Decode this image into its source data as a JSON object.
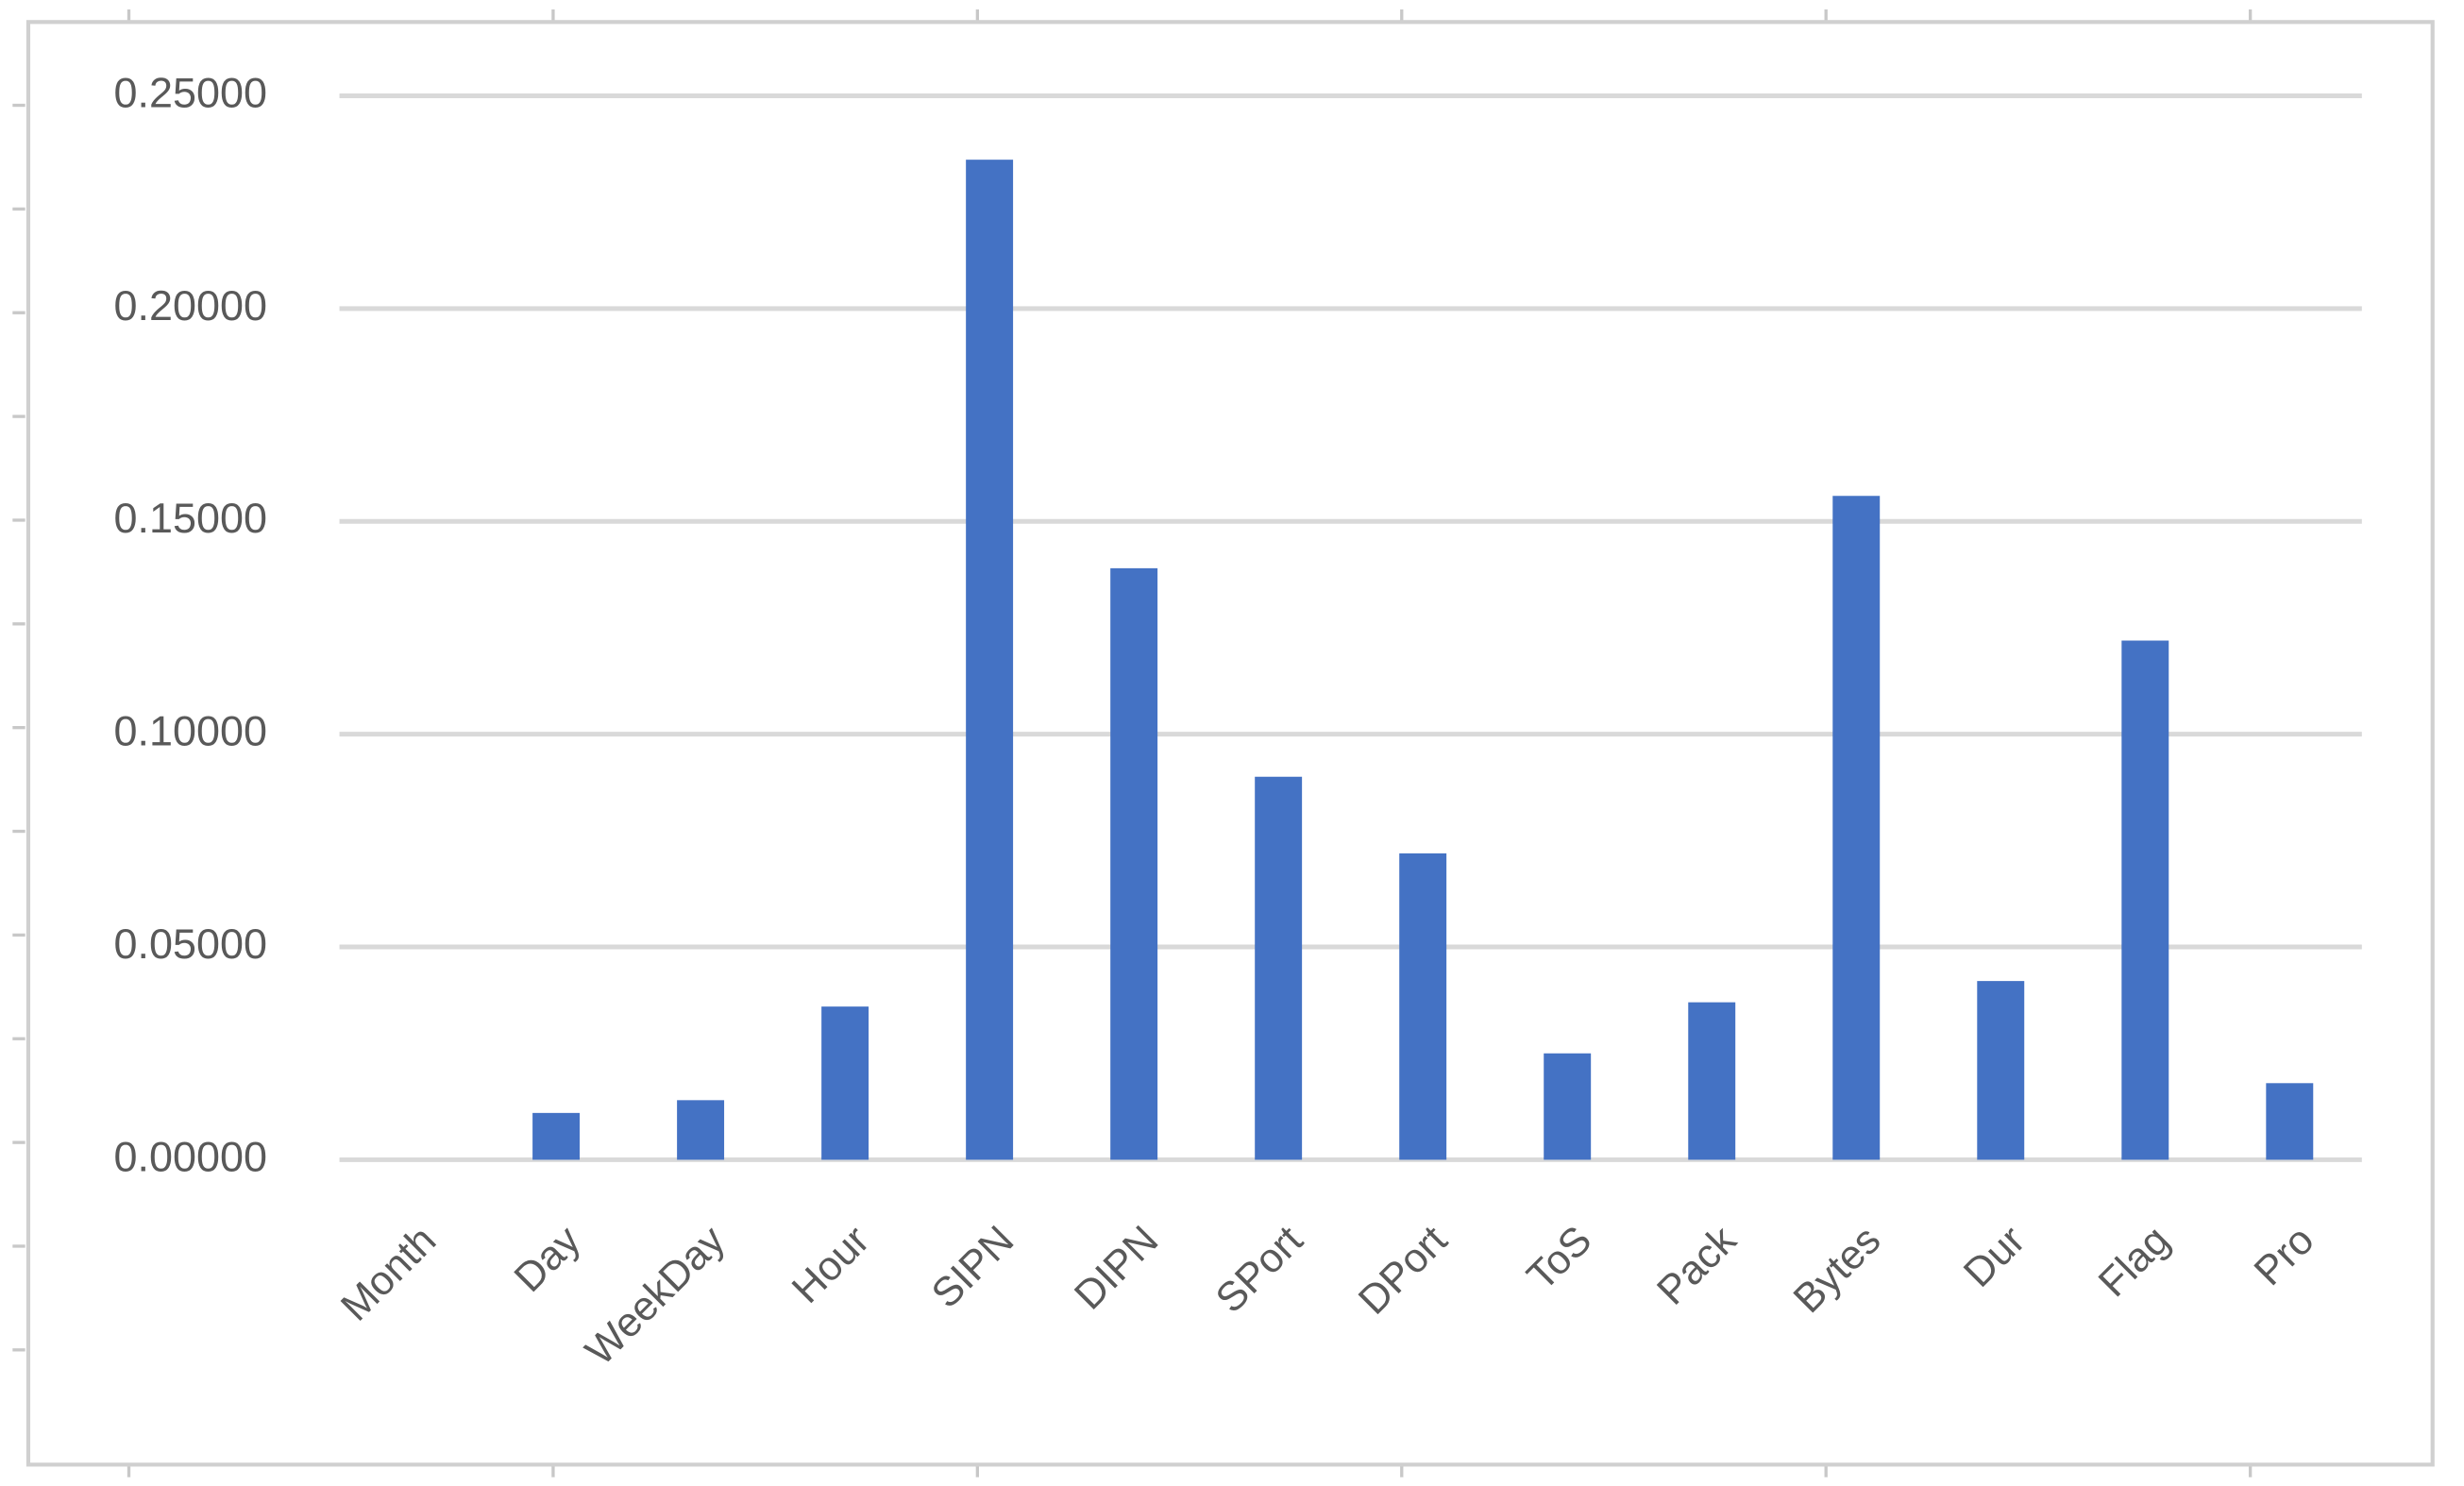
{
  "chart_data": {
    "type": "bar",
    "categories": [
      "Month",
      "Day",
      "WeekDay",
      "Hour",
      "SIPN",
      "DIPN",
      "SPort",
      "DPort",
      "ToS",
      "Pack",
      "Bytes",
      "Dur",
      "Flag",
      "Pro"
    ],
    "values": [
      0,
      0.011,
      0.014,
      0.036,
      0.235,
      0.139,
      0.09,
      0.072,
      0.025,
      0.037,
      0.156,
      0.042,
      0.122,
      0.018
    ],
    "color": "#4472c4",
    "ylim": [
      0,
      0.25
    ],
    "yticks": [
      {
        "value": 0,
        "label": "0.00000"
      },
      {
        "value": 0.05,
        "label": "0.05000"
      },
      {
        "value": 0.1,
        "label": "0.10000"
      },
      {
        "value": 0.15,
        "label": "0.15000"
      },
      {
        "value": 0.2,
        "label": "0.20000"
      },
      {
        "value": 0.25,
        "label": "0.25000"
      }
    ],
    "grid": true
  }
}
